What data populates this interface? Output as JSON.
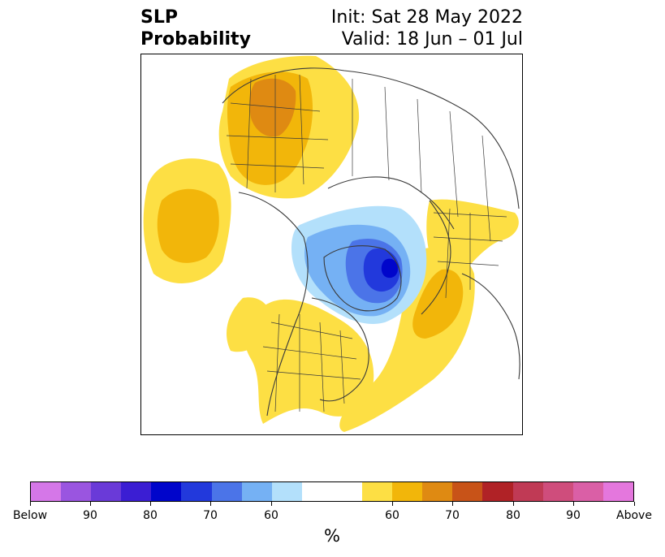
{
  "title": {
    "left_lines": [
      "SLP",
      "Probability"
    ],
    "right_lines": [
      "Init: Sat 28 May 2022",
      "Valid: 18 Jun – 01 Jul"
    ]
  },
  "colorbar": {
    "unit": "%",
    "colors": [
      "#d577e8",
      "#9a55e0",
      "#6a3ad8",
      "#3b1ed3",
      "#0005cb",
      "#2239dc",
      "#4b74e8",
      "#75b1f4",
      "#b3e0fb",
      "#ffffff",
      "#ffffff",
      "#fddf44",
      "#f2b60a",
      "#df8a12",
      "#c85318",
      "#b02226",
      "#c03a55",
      "#cf4d7c",
      "#da5fa6",
      "#e477dd"
    ],
    "tick_labels": [
      "Below",
      "90",
      "80",
      "70",
      "60",
      "60",
      "70",
      "80",
      "90",
      "Above"
    ]
  },
  "map": {
    "projection": "north-polar-stereographic",
    "colors": {
      "warm_low": "#fddf44",
      "warm_mid": "#f2b60a",
      "warm_high": "#df8a12",
      "cool_low": "#b3e0fb",
      "cool_mid": "#75b1f4",
      "cool_high": "#4b74e8",
      "cool_higher": "#2239dc",
      "cool_max": "#0005cb",
      "borders": "#3a3a3a"
    }
  }
}
